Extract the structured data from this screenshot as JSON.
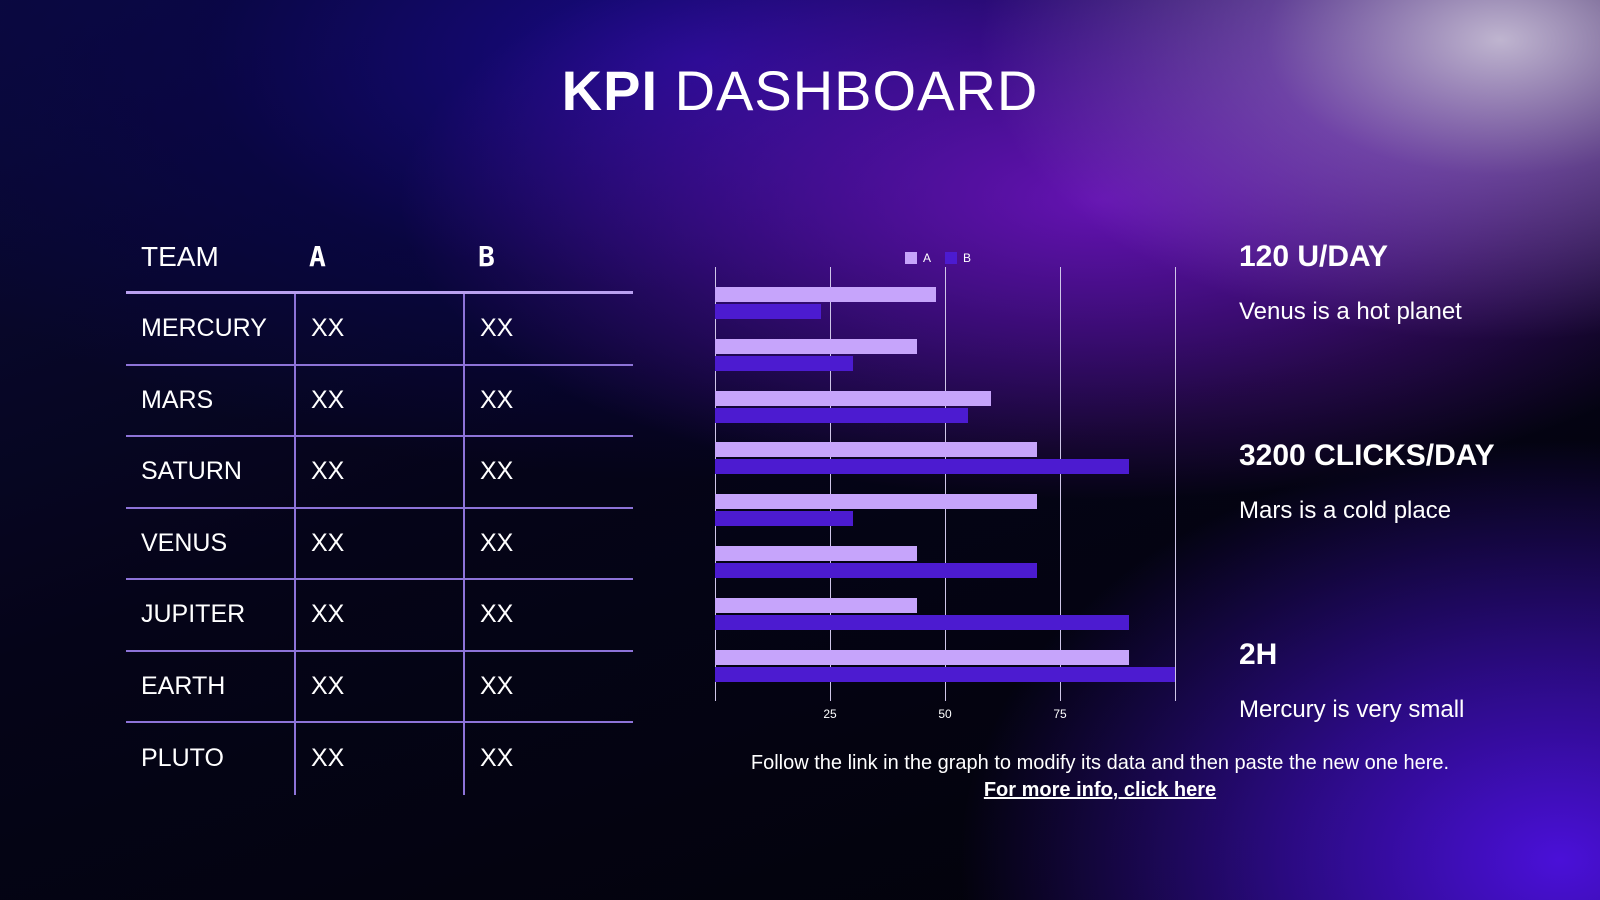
{
  "title": {
    "bold": "KPI",
    "rest": "DASHBOARD"
  },
  "table": {
    "headers": [
      "TEAM",
      "A",
      "B"
    ],
    "rows": [
      [
        "MERCURY",
        "XX",
        "XX"
      ],
      [
        "MARS",
        "XX",
        "XX"
      ],
      [
        "SATURN",
        "XX",
        "XX"
      ],
      [
        "VENUS",
        "XX",
        "XX"
      ],
      [
        "JUPITER",
        "XX",
        "XX"
      ],
      [
        "EARTH",
        "XX",
        "XX"
      ],
      [
        "PLUTO",
        "XX",
        "XX"
      ]
    ]
  },
  "chart_data": {
    "type": "bar",
    "orientation": "horizontal",
    "legend": "top-center",
    "series": [
      {
        "name": "A",
        "color": "#c6a4fb",
        "values": [
          48,
          44,
          60,
          70,
          70,
          44,
          44,
          90
        ]
      },
      {
        "name": "B",
        "color": "#4c1bd0",
        "values": [
          23,
          30,
          55,
          90,
          30,
          70,
          90,
          100
        ]
      }
    ],
    "xlim": [
      0,
      100
    ],
    "xticks": [
      "25",
      "50",
      "75"
    ],
    "grid": true
  },
  "kpis": [
    {
      "value": "120 U/DAY",
      "desc": "Venus is a hot planet"
    },
    {
      "value": "3200 CLICKS/DAY",
      "desc": "Mars is a cold place"
    },
    {
      "value": "2H",
      "desc": "Mercury is very small"
    }
  ],
  "note": {
    "text": "Follow the link in the graph to modify its data and then paste the new one here.",
    "link": "For more info, click here"
  }
}
